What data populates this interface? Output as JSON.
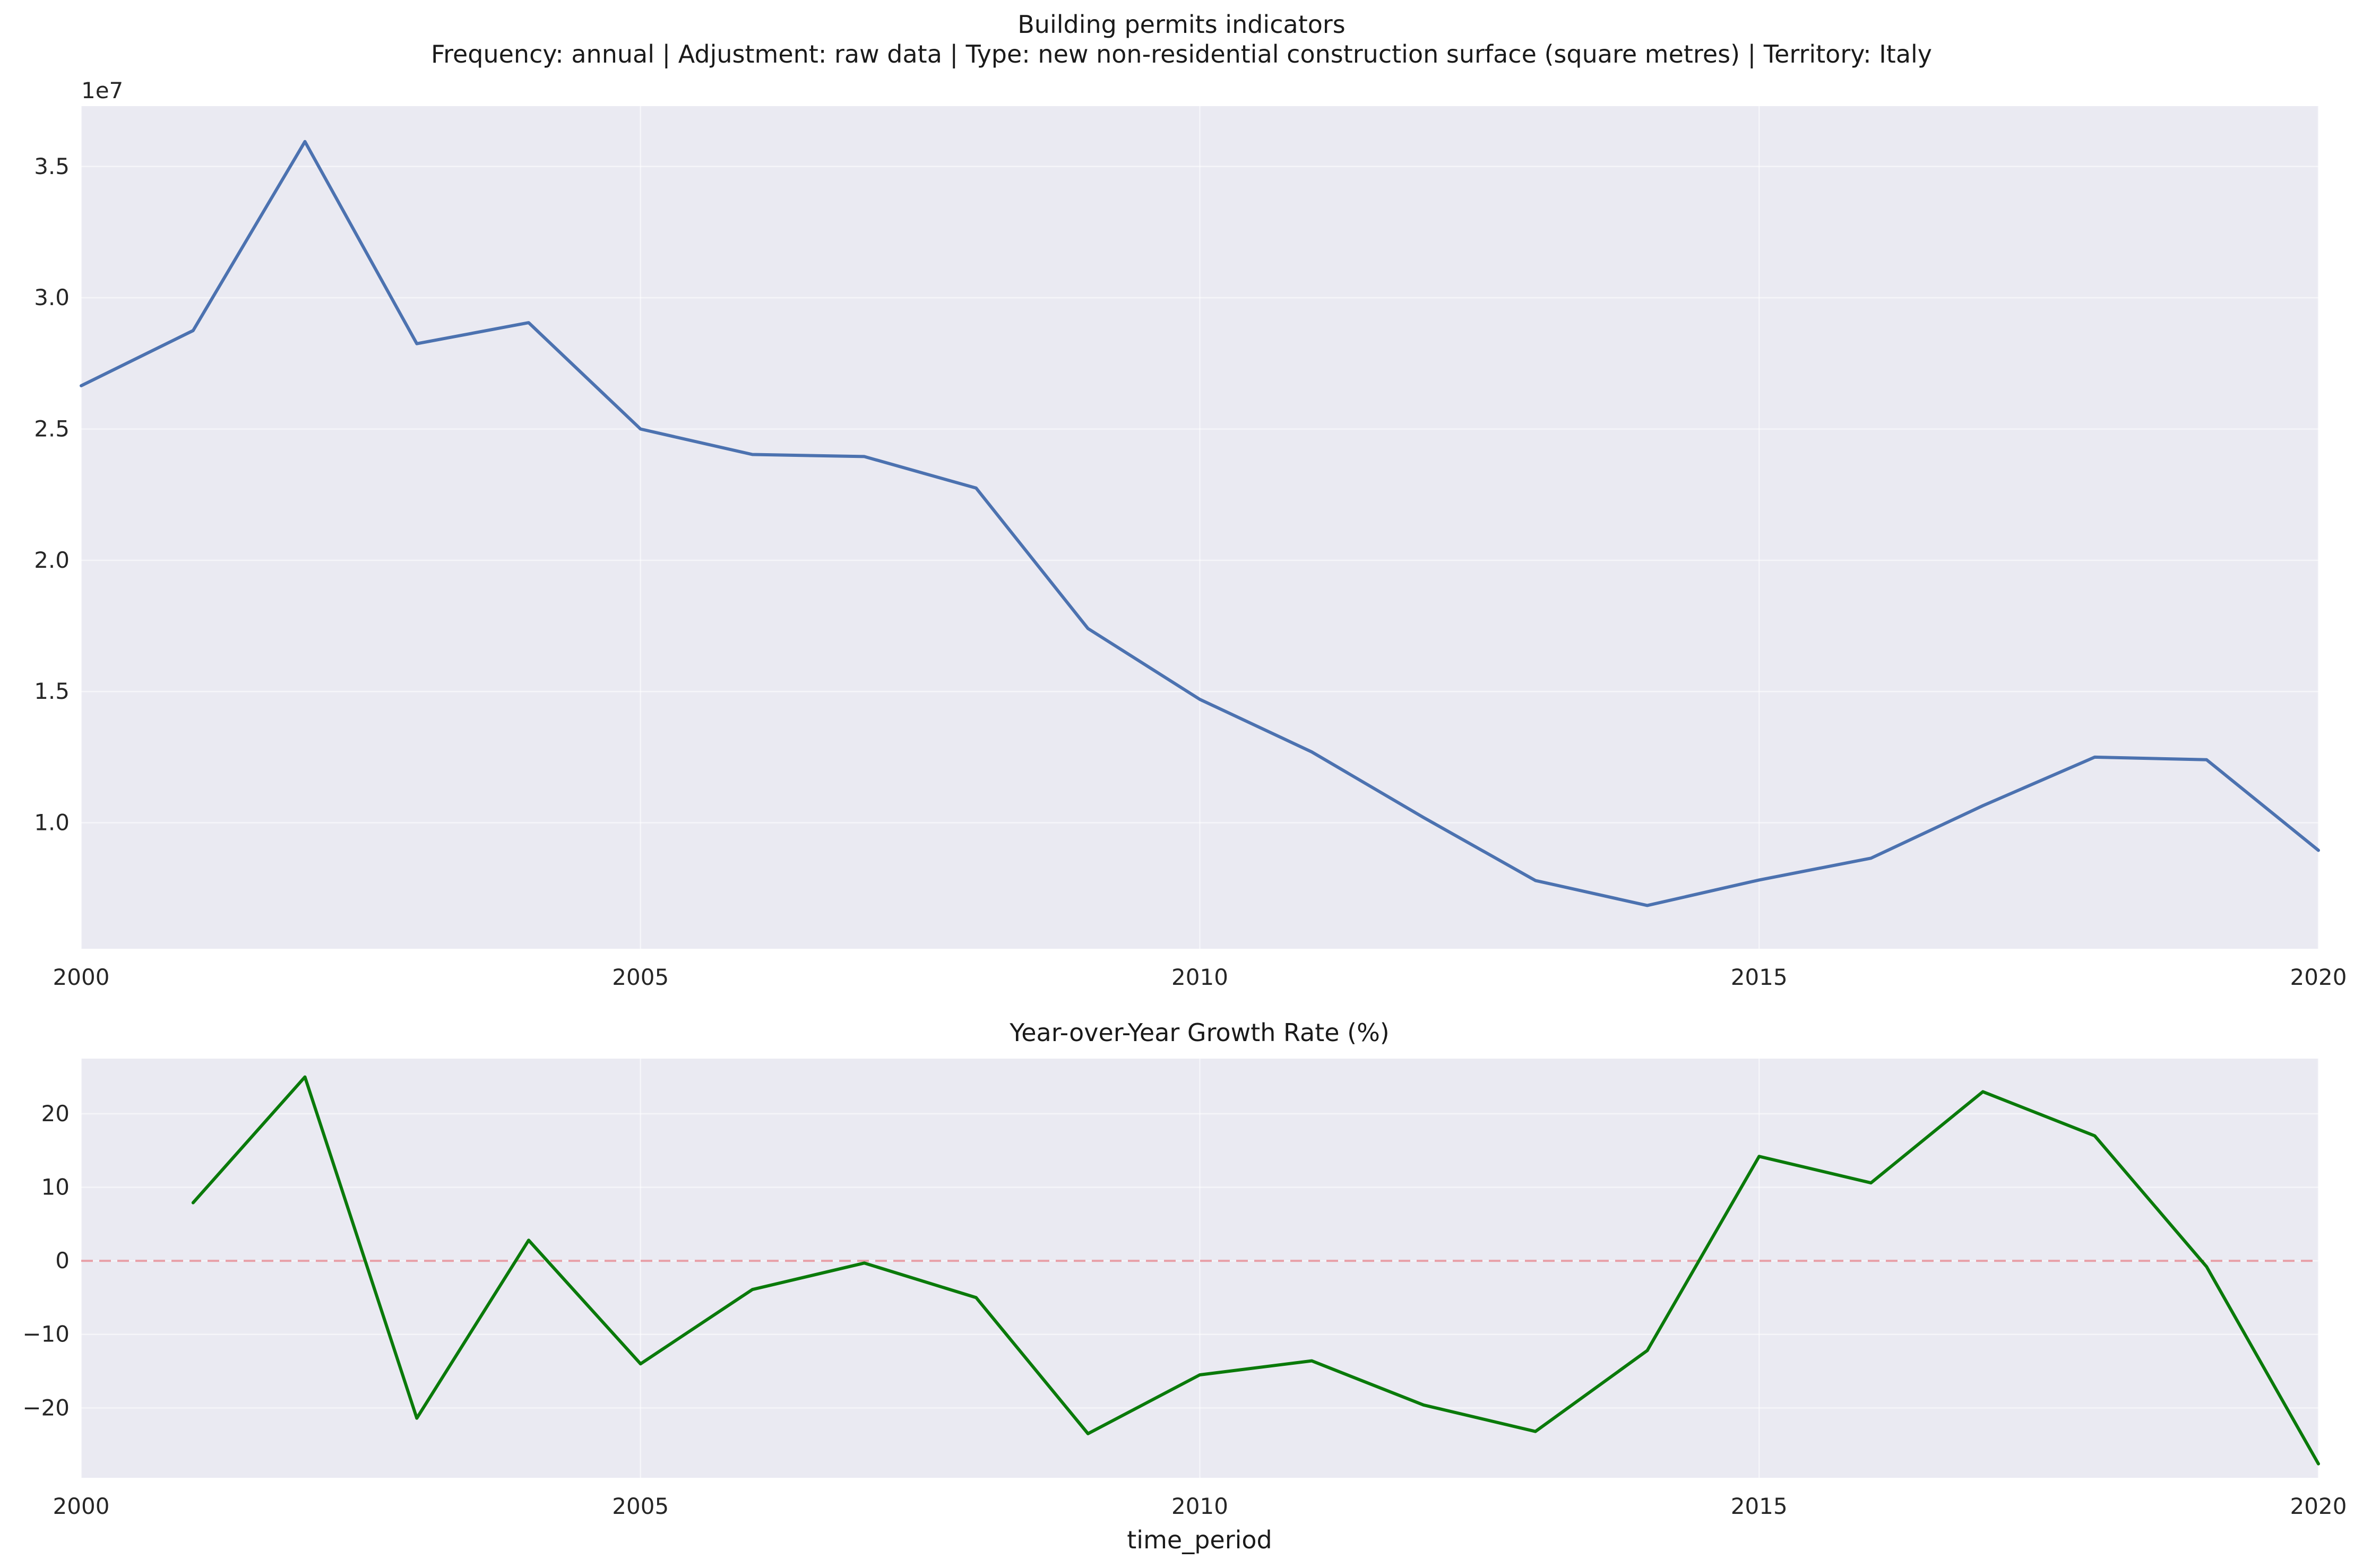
{
  "figure": {
    "title": "Building permits  indicators",
    "subtitle": "Frequency: annual | Adjustment: raw data | Type: new non-residential construction surface (square metres) | Territory: Italy"
  },
  "chart_data": [
    {
      "type": "line",
      "title": "",
      "xlabel": "",
      "ylabel": "",
      "offset_label": "1e7",
      "xlim": [
        2000,
        2020
      ],
      "ylim": [
        5200000,
        37300000
      ],
      "xticks": [
        2000,
        2005,
        2010,
        2015,
        2020
      ],
      "xtick_labels": [
        "2000",
        "2005",
        "2010",
        "2015",
        "2020"
      ],
      "yticks": [
        10000000,
        15000000,
        20000000,
        25000000,
        30000000,
        35000000
      ],
      "ytick_labels": [
        "1.0",
        "1.5",
        "2.0",
        "2.5",
        "3.0",
        "3.5"
      ],
      "grid": true,
      "series": [
        {
          "color": "#4c72b0",
          "x": [
            2000,
            2001,
            2002,
            2003,
            2004,
            2005,
            2006,
            2007,
            2008,
            2009,
            2010,
            2011,
            2012,
            2013,
            2014,
            2015,
            2016,
            2017,
            2018,
            2019,
            2020
          ],
          "y": [
            26650000,
            28750000,
            35950000,
            28250000,
            29050000,
            25000000,
            24030000,
            23950000,
            22750000,
            17400000,
            14700000,
            12700000,
            10200000,
            7800000,
            6850000,
            7820000,
            8650000,
            10650000,
            12500000,
            12400000,
            8950000
          ]
        }
      ]
    },
    {
      "type": "line",
      "title": "Year-over-Year Growth Rate (%)",
      "xlabel": "time_period",
      "ylabel": "",
      "xlim": [
        2000,
        2020
      ],
      "ylim": [
        -29.5,
        27.5
      ],
      "xticks": [
        2000,
        2005,
        2010,
        2015,
        2020
      ],
      "xtick_labels": [
        "2000",
        "2005",
        "2010",
        "2015",
        "2020"
      ],
      "yticks": [
        -20,
        -10,
        0,
        10,
        20
      ],
      "ytick_labels": [
        "−20",
        "−10",
        "0",
        "10",
        "20"
      ],
      "grid": true,
      "reference_line": {
        "y": 0,
        "style": "dashed",
        "color": "#e8a0a8"
      },
      "series": [
        {
          "color": "#0a7a0a",
          "x": [
            2001,
            2002,
            2003,
            2004,
            2005,
            2006,
            2007,
            2008,
            2009,
            2010,
            2011,
            2012,
            2013,
            2014,
            2015,
            2016,
            2017,
            2018,
            2019,
            2020
          ],
          "y": [
            7.9,
            25.0,
            -21.4,
            2.8,
            -14.0,
            -3.9,
            -0.3,
            -5.0,
            -23.5,
            -15.5,
            -13.6,
            -19.6,
            -23.2,
            -12.2,
            14.2,
            10.6,
            23.0,
            17.0,
            -0.8,
            -27.6
          ]
        }
      ]
    }
  ]
}
